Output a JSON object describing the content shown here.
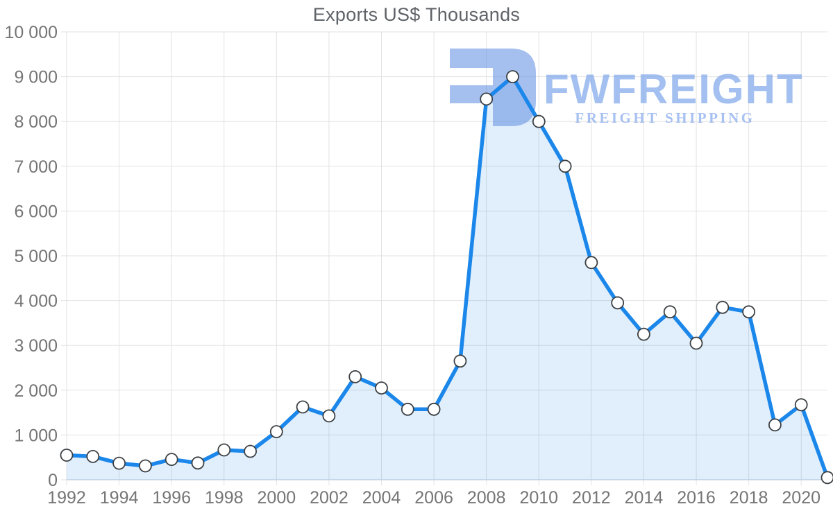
{
  "page": {
    "background": "#ffffff"
  },
  "watermark": {
    "brand": "FWFREIGHT",
    "tagline": "FREIGHT SHIPPING",
    "mark_glyph": "3",
    "mark_color": "#6d97e4",
    "brand_color": "#7fa7ec",
    "tagline_color": "#87a9ee"
  },
  "chart_data": {
    "type": "area",
    "title": "Exports US$ Thousands",
    "x": [
      1992,
      1993,
      1994,
      1995,
      1996,
      1997,
      1998,
      1999,
      2000,
      2001,
      2002,
      2003,
      2004,
      2005,
      2006,
      2007,
      2008,
      2009,
      2010,
      2011,
      2012,
      2013,
      2014,
      2015,
      2016,
      2017,
      2018,
      2019,
      2020,
      2021
    ],
    "values": [
      550,
      520,
      370,
      310,
      455,
      375,
      665,
      635,
      1075,
      1625,
      1425,
      2300,
      2050,
      1575,
      1575,
      2650,
      8500,
      9000,
      8000,
      7000,
      4850,
      3950,
      3250,
      3750,
      3050,
      3850,
      3750,
      1225,
      1675,
      50
    ],
    "series_name": "Exports US$ Thousands",
    "xlabel": "",
    "ylabel": "",
    "ylim": [
      0,
      10000
    ],
    "ytick_interval": 1000,
    "xtick_interval": 2,
    "xtick_labels": [
      "1992",
      "1994",
      "1996",
      "1998",
      "2000",
      "2002",
      "2004",
      "2006",
      "2008",
      "2010",
      "2012",
      "2014",
      "2016",
      "2018",
      "2020"
    ],
    "ytick_labels": [
      "0",
      "1 000",
      "2 000",
      "3 000",
      "4 000",
      "5 000",
      "6 000",
      "7 000",
      "8 000",
      "9 000",
      "10 000"
    ],
    "grid": true,
    "legend": false,
    "line_color": "#1b87ea",
    "fill_color": "rgba(27,135,234,0.13)",
    "marker_fill": "#ffffff",
    "marker_stroke": "#3c4043",
    "marker_radius": 8.5,
    "grid_color": "#e2e2e2",
    "axis_color": "#d0d9e2",
    "tick_label_color": "#757575",
    "title_color": "#5f6368"
  }
}
